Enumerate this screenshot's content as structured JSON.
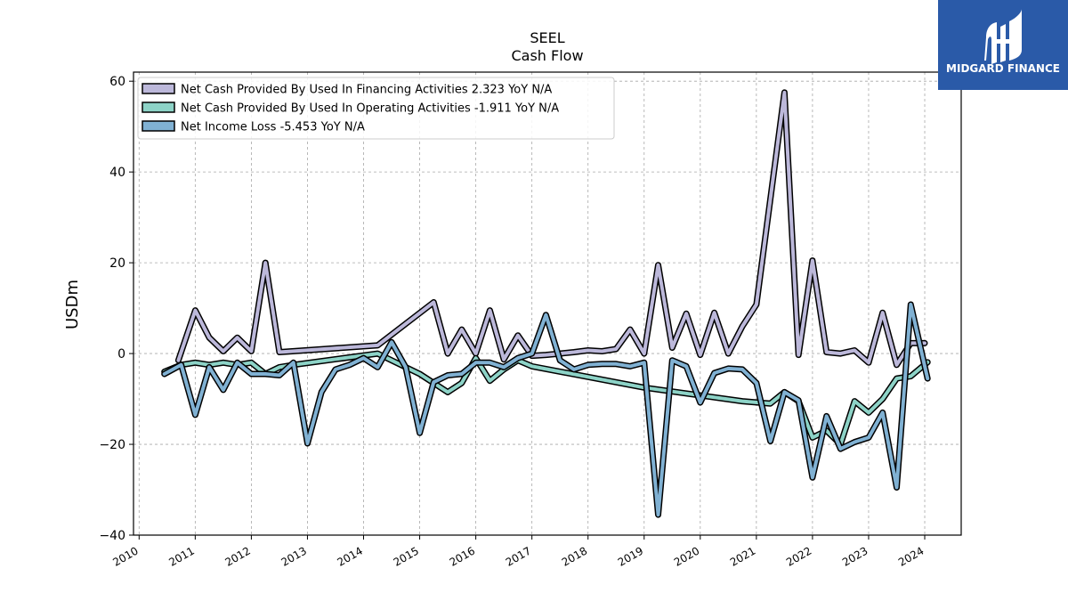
{
  "brand": {
    "name": "MIDGARD FINANCE",
    "color": "#2a5aa8"
  },
  "chart_data": {
    "type": "line",
    "title": "SEEL",
    "subtitle": "Cash Flow",
    "ylabel": "USDm",
    "xlabel": "",
    "ylim": [
      -40,
      62
    ],
    "xlim": [
      2009.9,
      2024.65
    ],
    "yticks": [
      -40,
      -20,
      0,
      20,
      40,
      60
    ],
    "yticklabels": [
      "−40",
      "−20",
      "0",
      "20",
      "40",
      "60"
    ],
    "xticks": [
      2010,
      2011,
      2012,
      2013,
      2014,
      2015,
      2016,
      2017,
      2018,
      2019,
      2020,
      2021,
      2022,
      2023,
      2024
    ],
    "xticklabels": [
      "2010",
      "2011",
      "2012",
      "2013",
      "2014",
      "2015",
      "2016",
      "2017",
      "2018",
      "2019",
      "2020",
      "2021",
      "2022",
      "2023",
      "2024"
    ],
    "grid": true,
    "legend_position": "top-left",
    "series": [
      {
        "name": "Net Cash Provided By Used In Financing Activities",
        "legend_label": "Net Cash Provided By Used In Financing Activities  2.323 YoY N/A",
        "color": "#bcb8da",
        "x": [
          2010.7,
          2011.0,
          2011.25,
          2011.5,
          2011.75,
          2012.0,
          2012.25,
          2012.5,
          2014.25,
          2015.25,
          2015.5,
          2015.75,
          2016.0,
          2016.25,
          2016.5,
          2016.75,
          2017.0,
          2017.25,
          2017.5,
          2017.75,
          2018.0,
          2018.25,
          2018.5,
          2018.75,
          2019.0,
          2019.25,
          2019.5,
          2019.75,
          2020.0,
          2020.25,
          2020.5,
          2020.75,
          2021.0,
          2021.5,
          2021.75,
          2022.0,
          2022.25,
          2022.5,
          2022.75,
          2023.0,
          2023.25,
          2023.5,
          2023.75,
          2024.0
        ],
        "y": [
          -1.5,
          9.5,
          3.5,
          0.5,
          3.5,
          0.5,
          20.0,
          0.3,
          1.8,
          11.3,
          0.0,
          5.3,
          0.0,
          9.5,
          -1.3,
          4.0,
          -0.5,
          -0.3,
          0.0,
          0.3,
          0.7,
          0.5,
          1.0,
          5.3,
          0.0,
          19.5,
          1.3,
          8.8,
          -0.3,
          9.0,
          0.0,
          6.0,
          10.8,
          57.5,
          -0.3,
          20.5,
          0.3,
          0.0,
          0.7,
          -2.0,
          9.0,
          -2.5,
          2.3,
          2.3
        ]
      },
      {
        "name": "Net Cash Provided By Used In Operating Activities",
        "legend_label": "Net Cash Provided By Used In Operating Activities  -1.911 YoY N/A",
        "color": "#8dd3c7",
        "x": [
          2010.45,
          2010.75,
          2011.0,
          2011.25,
          2011.5,
          2011.75,
          2012.0,
          2012.25,
          2012.5,
          2012.75,
          2014.25,
          2015.0,
          2015.5,
          2015.75,
          2016.0,
          2016.25,
          2016.5,
          2016.75,
          2017.0,
          2019.0,
          2020.75,
          2021.25,
          2021.5,
          2021.75,
          2022.0,
          2022.25,
          2022.5,
          2022.75,
          2023.0,
          2023.25,
          2023.5,
          2023.75,
          2024.05
        ],
        "y": [
          -4.0,
          -2.5,
          -2.0,
          -2.5,
          -2.0,
          -2.5,
          -2.0,
          -4.5,
          -3.0,
          -2.5,
          0.0,
          -4.5,
          -8.5,
          -6.5,
          -1.0,
          -6.0,
          -3.5,
          -1.5,
          -2.8,
          -7.5,
          -10.5,
          -11.0,
          -8.5,
          -10.5,
          -18.5,
          -17.0,
          -20.0,
          -10.5,
          -13.0,
          -10.0,
          -5.5,
          -5.0,
          -1.9
        ]
      },
      {
        "name": "Net Income Loss",
        "legend_label": "Net Income Loss  -5.453 YoY N/A",
        "color": "#80b1d3",
        "x": [
          2010.45,
          2010.75,
          2011.0,
          2011.25,
          2011.5,
          2011.75,
          2012.0,
          2012.25,
          2012.5,
          2012.75,
          2013.0,
          2013.25,
          2013.5,
          2013.75,
          2014.0,
          2014.25,
          2014.5,
          2014.75,
          2015.0,
          2015.25,
          2015.5,
          2015.75,
          2016.0,
          2016.25,
          2016.5,
          2016.75,
          2017.0,
          2017.25,
          2017.5,
          2017.75,
          2018.0,
          2018.25,
          2018.5,
          2018.75,
          2019.0,
          2019.25,
          2019.5,
          2019.75,
          2020.0,
          2020.25,
          2020.5,
          2020.75,
          2021.0,
          2021.25,
          2021.5,
          2021.75,
          2022.0,
          2022.25,
          2022.5,
          2022.75,
          2023.0,
          2023.25,
          2023.5,
          2023.75,
          2024.05
        ],
        "y": [
          -4.5,
          -2.5,
          -13.5,
          -3.0,
          -8.0,
          -2.0,
          -4.5,
          -4.5,
          -4.8,
          -2.0,
          -19.8,
          -8.5,
          -3.5,
          -2.5,
          -1.0,
          -3.0,
          2.5,
          -3.0,
          -17.5,
          -6.3,
          -4.8,
          -4.5,
          -2.0,
          -2.0,
          -3.0,
          -1.0,
          0.0,
          8.5,
          -1.5,
          -3.5,
          -2.5,
          -2.3,
          -2.3,
          -2.8,
          -2.0,
          -35.5,
          -1.5,
          -2.8,
          -10.8,
          -4.3,
          -3.3,
          -3.5,
          -6.5,
          -19.3,
          -8.5,
          -10.3,
          -27.3,
          -13.8,
          -21.0,
          -19.5,
          -18.5,
          -13.0,
          -29.5,
          10.8,
          -5.5
        ]
      }
    ]
  }
}
